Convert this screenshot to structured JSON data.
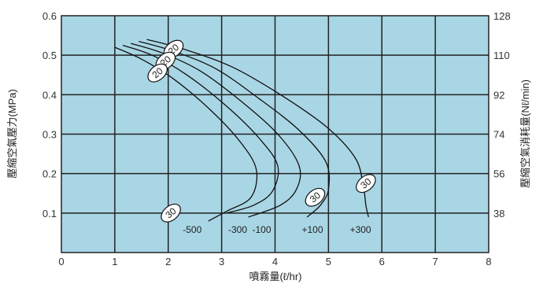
{
  "chart_data": {
    "type": "line",
    "xlabel": "噴霧量(ℓ/hr)",
    "ylabel_left": "壓縮空氣壓力(MPa)",
    "ylabel_right": "壓縮空氣消耗量(Nℓ/min)",
    "xlim": [
      0,
      8
    ],
    "ylim": [
      0,
      0.6
    ],
    "x_ticks": [
      "0",
      "1",
      "2",
      "3",
      "4",
      "5",
      "6",
      "7",
      "8"
    ],
    "y_ticks_left": [
      "0.1",
      "0.2",
      "0.3",
      "0.4",
      "0.5",
      "0.6"
    ],
    "y_ticks_right": [
      "38",
      "56",
      "74",
      "92",
      "110",
      "128"
    ],
    "grid": true,
    "colors": {
      "plot_bg": "#a9d6e5",
      "grid": "#222222",
      "curve": "#111111"
    },
    "series": [
      {
        "name": "-500",
        "points": [
          [
            1.0,
            0.52
          ],
          [
            1.5,
            0.49
          ],
          [
            2.1,
            0.44
          ],
          [
            2.8,
            0.36
          ],
          [
            3.35,
            0.28
          ],
          [
            3.65,
            0.21
          ],
          [
            3.55,
            0.14
          ],
          [
            3.1,
            0.105
          ],
          [
            2.75,
            0.08
          ]
        ]
      },
      {
        "name": "-300",
        "points": [
          [
            1.15,
            0.525
          ],
          [
            1.7,
            0.5
          ],
          [
            2.35,
            0.45
          ],
          [
            3.1,
            0.37
          ],
          [
            3.7,
            0.29
          ],
          [
            4.05,
            0.22
          ],
          [
            3.95,
            0.155
          ],
          [
            3.6,
            0.12
          ],
          [
            3.1,
            0.1
          ]
        ]
      },
      {
        "name": "-100",
        "points": [
          [
            1.3,
            0.53
          ],
          [
            1.9,
            0.505
          ],
          [
            2.6,
            0.46
          ],
          [
            3.35,
            0.385
          ],
          [
            4.05,
            0.3
          ],
          [
            4.45,
            0.22
          ],
          [
            4.4,
            0.16
          ],
          [
            4.1,
            0.12
          ],
          [
            3.5,
            0.09
          ]
        ]
      },
      {
        "name": "+100",
        "points": [
          [
            1.45,
            0.535
          ],
          [
            2.1,
            0.51
          ],
          [
            2.9,
            0.465
          ],
          [
            3.7,
            0.39
          ],
          [
            4.45,
            0.31
          ],
          [
            4.95,
            0.23
          ],
          [
            5.0,
            0.16
          ],
          [
            4.85,
            0.12
          ],
          [
            4.6,
            0.09
          ]
        ]
      },
      {
        "name": "+300",
        "points": [
          [
            1.6,
            0.54
          ],
          [
            2.3,
            0.515
          ],
          [
            3.2,
            0.47
          ],
          [
            4.1,
            0.4
          ],
          [
            4.95,
            0.32
          ],
          [
            5.5,
            0.24
          ],
          [
            5.65,
            0.17
          ],
          [
            5.7,
            0.12
          ],
          [
            5.75,
            0.09
          ]
        ]
      }
    ],
    "curve_labels": [
      {
        "text": "-500",
        "x": 2.45,
        "y": 0.05
      },
      {
        "text": "-300",
        "x": 3.3,
        "y": 0.05
      },
      {
        "text": "-100",
        "x": 3.75,
        "y": 0.05
      },
      {
        "text": "+100",
        "x": 4.7,
        "y": 0.05
      },
      {
        "text": "+300",
        "x": 5.6,
        "y": 0.05
      }
    ],
    "tags": [
      {
        "text": "20",
        "x": 2.1,
        "y": 0.515
      },
      {
        "text": "20",
        "x": 1.95,
        "y": 0.485
      },
      {
        "text": "20",
        "x": 1.8,
        "y": 0.455
      },
      {
        "text": "30",
        "x": 2.05,
        "y": 0.1
      },
      {
        "text": "30",
        "x": 4.75,
        "y": 0.14
      },
      {
        "text": "30",
        "x": 5.7,
        "y": 0.175
      }
    ]
  }
}
